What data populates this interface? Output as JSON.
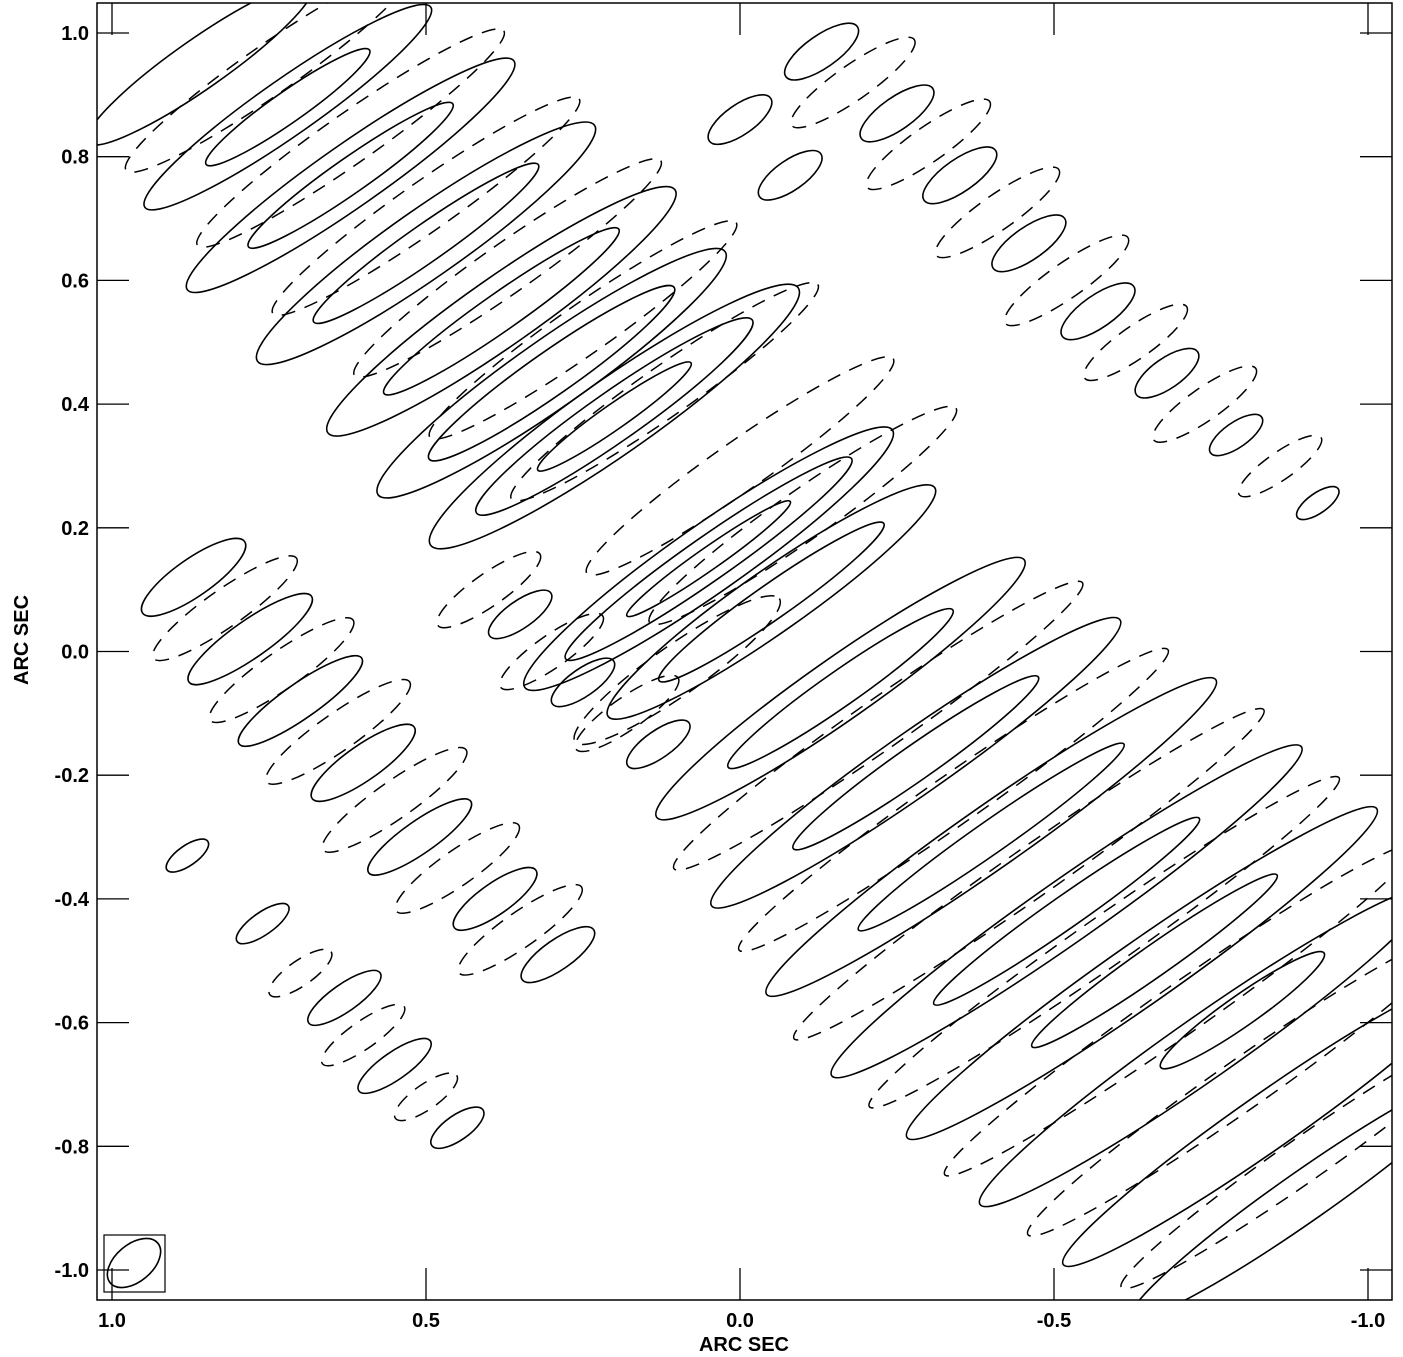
{
  "chart_data": {
    "type": "contour",
    "xlabel": "ARC SEC",
    "ylabel": "ARC SEC",
    "xlim": [
      1.0,
      -1.0
    ],
    "ylim": [
      -1.05,
      1.05
    ],
    "x_reversed": true,
    "x_ticks": [
      {
        "value": 1.0,
        "label": "1.0"
      },
      {
        "value": 0.5,
        "label": "0.5"
      },
      {
        "value": 0.0,
        "label": "0.0"
      },
      {
        "value": -0.5,
        "label": "-0.5"
      },
      {
        "value": -1.0,
        "label": "-1.0"
      }
    ],
    "y_ticks": [
      {
        "value": 1.0,
        "label": "1.0"
      },
      {
        "value": 0.8,
        "label": "0.8"
      },
      {
        "value": 0.6,
        "label": "0.6"
      },
      {
        "value": 0.4,
        "label": "0.4"
      },
      {
        "value": 0.2,
        "label": "0.2"
      },
      {
        "value": 0.0,
        "label": "0.0"
      },
      {
        "value": -0.2,
        "label": "-0.2"
      },
      {
        "value": -0.4,
        "label": "-0.4"
      },
      {
        "value": -0.6,
        "label": "-0.6"
      },
      {
        "value": -0.8,
        "label": "-0.8"
      },
      {
        "value": -1.0,
        "label": "-1.0"
      }
    ],
    "fringe_angle_deg": -35,
    "fringe_spacing_arcsec": 0.1,
    "positive_contours": "solid",
    "negative_contours": "dashed",
    "features": [
      {
        "x": 0.05,
        "y": 0.15,
        "major": 0.36,
        "minor": 0.055,
        "level": 1
      },
      {
        "x": 0.05,
        "y": 0.15,
        "major": 0.28,
        "minor": 0.035,
        "level": 2
      },
      {
        "x": 0.05,
        "y": 0.15,
        "major": 0.16,
        "minor": 0.018,
        "level": 3
      },
      {
        "x": -0.05,
        "y": 0.08,
        "major": 0.32,
        "minor": 0.05,
        "level": 1
      },
      {
        "x": -0.05,
        "y": 0.08,
        "major": 0.22,
        "minor": 0.028,
        "level": 2
      },
      {
        "x": 0.2,
        "y": 0.38,
        "major": 0.36,
        "minor": 0.06,
        "level": 1
      },
      {
        "x": 0.2,
        "y": 0.38,
        "major": 0.27,
        "minor": 0.04,
        "level": 2
      },
      {
        "x": 0.2,
        "y": 0.38,
        "major": 0.15,
        "minor": 0.02,
        "level": 3
      },
      {
        "x": 0.3,
        "y": 0.45,
        "major": 0.34,
        "minor": 0.055,
        "level": 1
      },
      {
        "x": 0.3,
        "y": 0.45,
        "major": 0.24,
        "minor": 0.035,
        "level": 2
      },
      {
        "x": 0.38,
        "y": 0.55,
        "major": 0.34,
        "minor": 0.055,
        "level": 1
      },
      {
        "x": 0.38,
        "y": 0.55,
        "major": 0.23,
        "minor": 0.03,
        "level": 2
      },
      {
        "x": 0.5,
        "y": 0.66,
        "major": 0.33,
        "minor": 0.055,
        "level": 1
      },
      {
        "x": 0.5,
        "y": 0.66,
        "major": 0.22,
        "minor": 0.03,
        "level": 2
      },
      {
        "x": 0.62,
        "y": 0.77,
        "major": 0.32,
        "minor": 0.05,
        "level": 1
      },
      {
        "x": 0.62,
        "y": 0.77,
        "major": 0.2,
        "minor": 0.028,
        "level": 2
      },
      {
        "x": 0.72,
        "y": 0.88,
        "major": 0.28,
        "minor": 0.045,
        "level": 1
      },
      {
        "x": 0.72,
        "y": 0.88,
        "major": 0.16,
        "minor": 0.025,
        "level": 2
      },
      {
        "x": 0.86,
        "y": 0.95,
        "major": 0.22,
        "minor": 0.04,
        "level": 1
      },
      {
        "x": -0.16,
        "y": -0.06,
        "major": 0.36,
        "minor": 0.05,
        "level": 1
      },
      {
        "x": -0.16,
        "y": -0.06,
        "major": 0.22,
        "minor": 0.028,
        "level": 2
      },
      {
        "x": -0.28,
        "y": -0.18,
        "major": 0.4,
        "minor": 0.05,
        "level": 1
      },
      {
        "x": -0.28,
        "y": -0.18,
        "major": 0.24,
        "minor": 0.028,
        "level": 2
      },
      {
        "x": -0.4,
        "y": -0.3,
        "major": 0.44,
        "minor": 0.05,
        "level": 1
      },
      {
        "x": -0.4,
        "y": -0.3,
        "major": 0.26,
        "minor": 0.026,
        "level": 2
      },
      {
        "x": -0.52,
        "y": -0.42,
        "major": 0.46,
        "minor": 0.05,
        "level": 1
      },
      {
        "x": -0.52,
        "y": -0.42,
        "major": 0.26,
        "minor": 0.026,
        "level": 2
      },
      {
        "x": -0.64,
        "y": -0.52,
        "major": 0.46,
        "minor": 0.05,
        "level": 1
      },
      {
        "x": -0.66,
        "y": -0.5,
        "major": 0.24,
        "minor": 0.025,
        "level": 2
      },
      {
        "x": -0.74,
        "y": -0.64,
        "major": 0.44,
        "minor": 0.05,
        "level": 1
      },
      {
        "x": -0.8,
        "y": -0.58,
        "major": 0.16,
        "minor": 0.025,
        "level": 2
      },
      {
        "x": -0.84,
        "y": -0.76,
        "major": 0.4,
        "minor": 0.045,
        "level": 1
      },
      {
        "x": -0.9,
        "y": -0.88,
        "major": 0.34,
        "minor": 0.04,
        "level": 1
      },
      {
        "x": 0.87,
        "y": 0.12,
        "major": 0.1,
        "minor": 0.03,
        "level": 1
      },
      {
        "x": 0.78,
        "y": 0.02,
        "major": 0.12,
        "minor": 0.03,
        "level": 1
      },
      {
        "x": 0.7,
        "y": -0.08,
        "major": 0.12,
        "minor": 0.028,
        "level": 1
      },
      {
        "x": 0.6,
        "y": -0.18,
        "major": 0.1,
        "minor": 0.028,
        "level": 1
      },
      {
        "x": 0.51,
        "y": -0.3,
        "major": 0.1,
        "minor": 0.026,
        "level": 1
      },
      {
        "x": 0.39,
        "y": -0.4,
        "major": 0.08,
        "minor": 0.025,
        "level": 1
      },
      {
        "x": 0.29,
        "y": -0.49,
        "major": 0.07,
        "minor": 0.024,
        "level": 1
      },
      {
        "x": 0.63,
        "y": -0.56,
        "major": 0.07,
        "minor": 0.022,
        "level": 1
      },
      {
        "x": 0.55,
        "y": -0.67,
        "major": 0.07,
        "minor": 0.022,
        "level": 1
      },
      {
        "x": 0.45,
        "y": -0.77,
        "major": 0.05,
        "minor": 0.02,
        "level": 1
      },
      {
        "x": 0.76,
        "y": -0.44,
        "major": 0.05,
        "minor": 0.018,
        "level": 1
      },
      {
        "x": 0.88,
        "y": -0.33,
        "major": 0.04,
        "minor": 0.016,
        "level": 1
      },
      {
        "x": -0.13,
        "y": 0.97,
        "major": 0.07,
        "minor": 0.026,
        "level": 1
      },
      {
        "x": -0.25,
        "y": 0.87,
        "major": 0.07,
        "minor": 0.026,
        "level": 1
      },
      {
        "x": -0.35,
        "y": 0.77,
        "major": 0.07,
        "minor": 0.026,
        "level": 1
      },
      {
        "x": -0.46,
        "y": 0.66,
        "major": 0.07,
        "minor": 0.026,
        "level": 1
      },
      {
        "x": -0.57,
        "y": 0.55,
        "major": 0.07,
        "minor": 0.026,
        "level": 1
      },
      {
        "x": -0.68,
        "y": 0.45,
        "major": 0.06,
        "minor": 0.024,
        "level": 1
      },
      {
        "x": -0.79,
        "y": 0.35,
        "major": 0.05,
        "minor": 0.02,
        "level": 1
      },
      {
        "x": -0.92,
        "y": 0.24,
        "major": 0.04,
        "minor": 0.016,
        "level": 1
      },
      {
        "x": 0.0,
        "y": 0.86,
        "major": 0.06,
        "minor": 0.024,
        "level": 1
      },
      {
        "x": -0.08,
        "y": 0.77,
        "major": 0.06,
        "minor": 0.024,
        "level": 1
      },
      {
        "x": 0.35,
        "y": 0.06,
        "major": 0.06,
        "minor": 0.022,
        "level": 1
      },
      {
        "x": 0.25,
        "y": -0.05,
        "major": 0.06,
        "minor": 0.022,
        "level": 1
      },
      {
        "x": 0.13,
        "y": -0.15,
        "major": 0.06,
        "minor": 0.022,
        "level": 1
      },
      {
        "x": 0.1,
        "y": -0.03,
        "major": 0.2,
        "minor": 0.04,
        "level": -1
      },
      {
        "x": 0.0,
        "y": 0.3,
        "major": 0.3,
        "minor": 0.04,
        "level": -1
      },
      {
        "x": 0.12,
        "y": 0.42,
        "major": 0.3,
        "minor": 0.04,
        "level": -1
      },
      {
        "x": 0.25,
        "y": 0.52,
        "major": 0.3,
        "minor": 0.04,
        "level": -1
      },
      {
        "x": 0.37,
        "y": 0.62,
        "major": 0.3,
        "minor": 0.04,
        "level": -1
      },
      {
        "x": 0.5,
        "y": 0.72,
        "major": 0.3,
        "minor": 0.04,
        "level": -1
      },
      {
        "x": 0.62,
        "y": 0.83,
        "major": 0.3,
        "minor": 0.04,
        "level": -1
      },
      {
        "x": 0.75,
        "y": 0.94,
        "major": 0.28,
        "minor": 0.04,
        "level": -1
      },
      {
        "x": -0.1,
        "y": 0.22,
        "major": 0.3,
        "minor": 0.04,
        "level": -1
      },
      {
        "x": -0.22,
        "y": -0.12,
        "major": 0.4,
        "minor": 0.04,
        "level": -1
      },
      {
        "x": -0.34,
        "y": -0.24,
        "major": 0.42,
        "minor": 0.04,
        "level": -1
      },
      {
        "x": -0.46,
        "y": -0.36,
        "major": 0.46,
        "minor": 0.04,
        "level": -1
      },
      {
        "x": -0.58,
        "y": -0.47,
        "major": 0.46,
        "minor": 0.04,
        "level": -1
      },
      {
        "x": -0.7,
        "y": -0.58,
        "major": 0.46,
        "minor": 0.04,
        "level": -1
      },
      {
        "x": -0.8,
        "y": -0.7,
        "major": 0.42,
        "minor": 0.04,
        "level": -1
      },
      {
        "x": -0.9,
        "y": -0.82,
        "major": 0.36,
        "minor": 0.035,
        "level": -1
      },
      {
        "x": 0.82,
        "y": 0.07,
        "major": 0.14,
        "minor": 0.03,
        "level": -1
      },
      {
        "x": 0.73,
        "y": -0.03,
        "major": 0.14,
        "minor": 0.03,
        "level": -1
      },
      {
        "x": 0.64,
        "y": -0.13,
        "major": 0.14,
        "minor": 0.03,
        "level": -1
      },
      {
        "x": 0.55,
        "y": -0.24,
        "major": 0.14,
        "minor": 0.03,
        "level": -1
      },
      {
        "x": 0.45,
        "y": -0.35,
        "major": 0.12,
        "minor": 0.028,
        "level": -1
      },
      {
        "x": 0.35,
        "y": -0.45,
        "major": 0.12,
        "minor": 0.028,
        "level": -1
      },
      {
        "x": 0.4,
        "y": 0.1,
        "major": 0.1,
        "minor": 0.026,
        "level": -1
      },
      {
        "x": 0.3,
        "y": 0.0,
        "major": 0.1,
        "minor": 0.026,
        "level": -1
      },
      {
        "x": 0.18,
        "y": -0.1,
        "major": 0.1,
        "minor": 0.026,
        "level": -1
      },
      {
        "x": -0.18,
        "y": 0.92,
        "major": 0.12,
        "minor": 0.028,
        "level": -1
      },
      {
        "x": -0.3,
        "y": 0.82,
        "major": 0.12,
        "minor": 0.028,
        "level": -1
      },
      {
        "x": -0.41,
        "y": 0.71,
        "major": 0.12,
        "minor": 0.028,
        "level": -1
      },
      {
        "x": -0.52,
        "y": 0.6,
        "major": 0.12,
        "minor": 0.028,
        "level": -1
      },
      {
        "x": -0.63,
        "y": 0.5,
        "major": 0.1,
        "minor": 0.026,
        "level": -1
      },
      {
        "x": -0.74,
        "y": 0.4,
        "major": 0.1,
        "minor": 0.026,
        "level": -1
      },
      {
        "x": -0.86,
        "y": 0.3,
        "major": 0.08,
        "minor": 0.022,
        "level": -1
      },
      {
        "x": 0.6,
        "y": -0.62,
        "major": 0.08,
        "minor": 0.022,
        "level": -1
      },
      {
        "x": 0.5,
        "y": -0.72,
        "major": 0.06,
        "minor": 0.02,
        "level": -1
      },
      {
        "x": 0.7,
        "y": -0.52,
        "major": 0.06,
        "minor": 0.02,
        "level": -1
      }
    ],
    "beam": {
      "x": 0.97,
      "y": -1.0,
      "major": 0.05,
      "minor": 0.03,
      "angle_deg": 40
    }
  }
}
